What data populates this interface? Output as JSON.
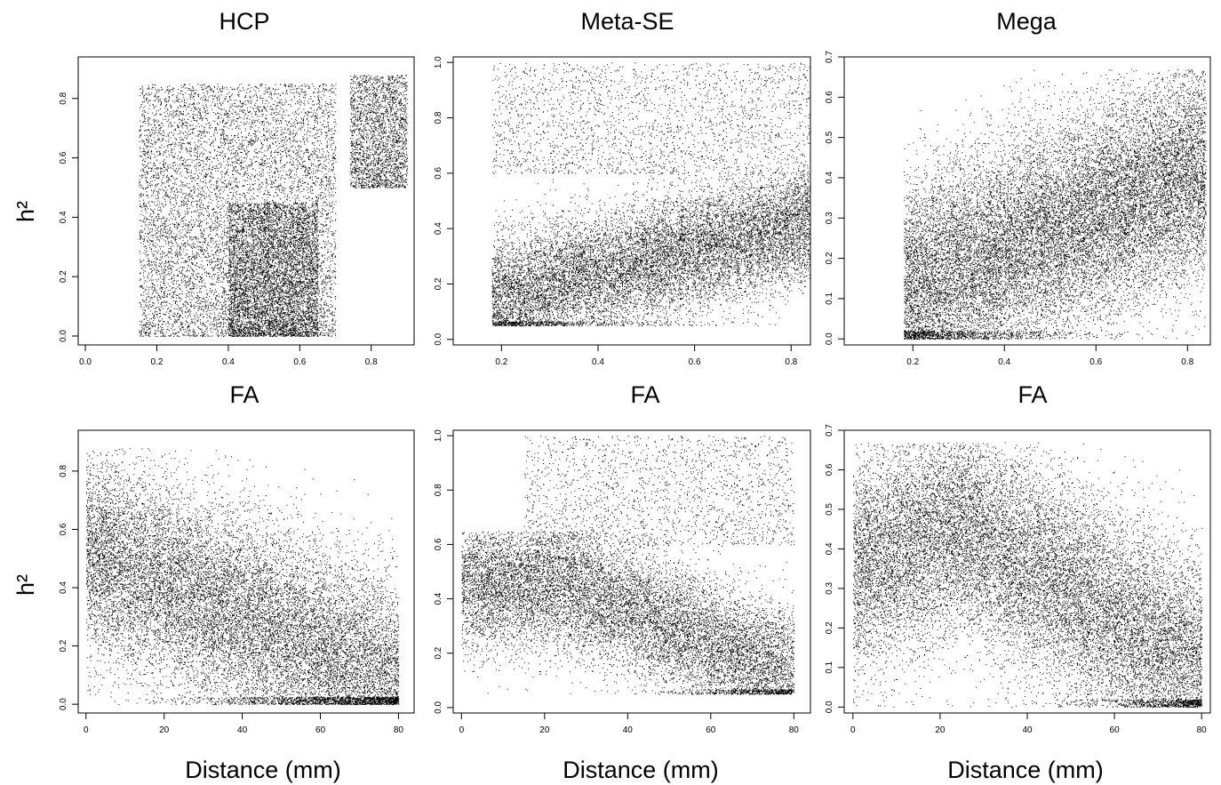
{
  "chart_data": [
    {
      "type": "scatter",
      "title": "HCP",
      "xlabel": "FA",
      "ylabel": "h²",
      "xlim": [
        -0.02,
        0.92
      ],
      "ylim": [
        -0.03,
        0.94
      ],
      "xticks": [
        "0.0",
        "0.2",
        "0.4",
        "0.6",
        "0.8"
      ],
      "yticks": [
        "0.0",
        "0.2",
        "0.4",
        "0.6",
        "0.8"
      ],
      "series": [
        {
          "points_description": "dense cloud, approx. 20000 points",
          "clusters": [
            {
              "x_range": [
                0.15,
                0.7
              ],
              "y_range": [
                0.0,
                0.85
              ],
              "weight": 0.55
            },
            {
              "x_range": [
                0.4,
                0.65
              ],
              "y_range": [
                0.0,
                0.45
              ],
              "weight": 0.3
            },
            {
              "x_range": [
                0.74,
                0.9
              ],
              "y_range": [
                0.5,
                0.88
              ],
              "weight": 0.15
            }
          ]
        }
      ]
    },
    {
      "type": "scatter",
      "title": "Meta-SE",
      "xlabel": "FA",
      "ylabel": "",
      "xlim": [
        0.1,
        0.84
      ],
      "ylim": [
        -0.02,
        1.02
      ],
      "xticks": [
        "0.2",
        "0.4",
        "0.6",
        "0.8"
      ],
      "yticks": [
        "0.0",
        "0.2",
        "0.4",
        "0.6",
        "0.8",
        "1.0"
      ],
      "series": [
        {
          "points_description": "dense diagonal band from (0.2,0.15) to (0.8,0.45) plus sparse scatter up to 1.0",
          "clusters": [
            {
              "x_range": [
                0.18,
                0.84
              ],
              "y_range": [
                0.05,
                0.6
              ],
              "trend": [
                [
                  0.18,
                  0.15
                ],
                [
                  0.84,
                  0.42
                ]
              ],
              "weight": 0.85
            },
            {
              "x_range": [
                0.18,
                0.84
              ],
              "y_range": [
                0.6,
                1.0
              ],
              "weight": 0.15
            }
          ]
        }
      ]
    },
    {
      "type": "scatter",
      "title": "Mega",
      "xlabel": "FA",
      "ylabel": "",
      "xlim": [
        0.05,
        0.85
      ],
      "ylim": [
        -0.015,
        0.7
      ],
      "xticks": [
        "0.2",
        "0.4",
        "0.6",
        "0.8"
      ],
      "yticks": [
        "0.0",
        "0.1",
        "0.2",
        "0.3",
        "0.4",
        "0.5",
        "0.6",
        "0.7"
      ],
      "series": [
        {
          "points_description": "dense diagonal cloud from (0.2,0.1) to (0.8,0.4)",
          "clusters": [
            {
              "x_range": [
                0.18,
                0.84
              ],
              "y_range": [
                0.0,
                0.67
              ],
              "trend": [
                [
                  0.18,
                  0.12
                ],
                [
                  0.84,
                  0.42
                ]
              ],
              "weight": 1.0
            }
          ]
        }
      ]
    },
    {
      "type": "scatter",
      "title": "",
      "xlabel": "Distance (mm)",
      "ylabel": "h²",
      "xlim": [
        -2,
        84
      ],
      "ylim": [
        -0.03,
        0.94
      ],
      "xticks": [
        "0",
        "20",
        "40",
        "60",
        "80"
      ],
      "yticks": [
        "0.0",
        "0.2",
        "0.4",
        "0.6",
        "0.8"
      ],
      "series": [
        {
          "points_description": "cloud decreasing with distance, dense lower-right",
          "clusters": [
            {
              "x_range": [
                0,
                80
              ],
              "y_range": [
                0.0,
                0.88
              ],
              "trend": [
                [
                  5,
                  0.5
                ],
                [
                  80,
                  0.08
                ]
              ],
              "weight": 1.0
            }
          ]
        }
      ]
    },
    {
      "type": "scatter",
      "title": "",
      "xlabel": "Distance (mm)",
      "ylabel": "",
      "xlim": [
        -2,
        84
      ],
      "ylim": [
        -0.02,
        1.02
      ],
      "xticks": [
        "0",
        "20",
        "40",
        "60",
        "80"
      ],
      "yticks": [
        "0.0",
        "0.2",
        "0.4",
        "0.6",
        "0.8",
        "1.0"
      ],
      "series": [
        {
          "points_description": "band decreasing from (25,0.45) to (80,0.12), sparse scatter above",
          "clusters": [
            {
              "x_range": [
                0,
                80
              ],
              "y_range": [
                0.05,
                0.65
              ],
              "trend": [
                [
                  0,
                  0.45
                ],
                [
                  25,
                  0.45
                ],
                [
                  80,
                  0.12
                ]
              ],
              "weight": 0.87
            },
            {
              "x_range": [
                15,
                80
              ],
              "y_range": [
                0.6,
                1.0
              ],
              "weight": 0.13
            }
          ]
        }
      ]
    },
    {
      "type": "scatter",
      "title": "",
      "xlabel": "Distance (mm)",
      "ylabel": "",
      "xlim": [
        -2,
        82
      ],
      "ylim": [
        -0.015,
        0.7
      ],
      "xticks": [
        "0",
        "20",
        "40",
        "60",
        "80"
      ],
      "yticks": [
        "0.0",
        "0.1",
        "0.2",
        "0.3",
        "0.4",
        "0.5",
        "0.6",
        "0.7"
      ],
      "series": [
        {
          "points_description": "cloud decreasing from (25,0.45) to (80,0.1)",
          "clusters": [
            {
              "x_range": [
                0,
                80
              ],
              "y_range": [
                0.0,
                0.67
              ],
              "trend": [
                [
                  0,
                  0.35
                ],
                [
                  25,
                  0.45
                ],
                [
                  80,
                  0.1
                ]
              ],
              "weight": 1.0
            }
          ]
        }
      ]
    }
  ]
}
